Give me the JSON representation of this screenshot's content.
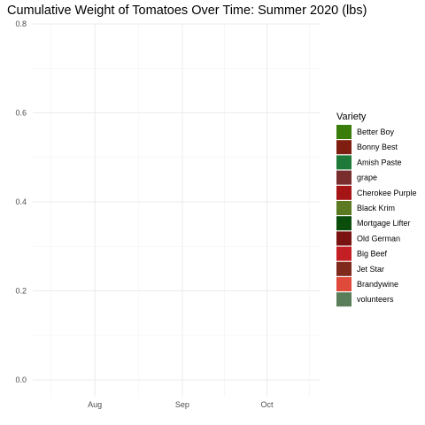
{
  "chart_data": {
    "type": "area",
    "title": "Cumulative Weight of Tomatoes Over Time: Summer 2020 (lbs)",
    "xlabel": "",
    "ylabel": "",
    "x_ticks": [
      "Aug",
      "Sep",
      "Oct"
    ],
    "x_range": [
      "2020-07-10",
      "2020-10-20"
    ],
    "x_tick_dates": [
      "2020-08-01",
      "2020-09-01",
      "2020-10-01"
    ],
    "ylim": [
      0,
      0.8
    ],
    "y_ticks": [
      "0.0",
      "0.2",
      "0.4",
      "0.6",
      "0.8"
    ],
    "grid": true,
    "legend": {
      "title": "Variety",
      "placement": "right",
      "entries": [
        {
          "name": "Better Boy",
          "color": "#3a7d0a"
        },
        {
          "name": "Bonny Best",
          "color": "#7f1d10"
        },
        {
          "name": "Amish Paste",
          "color": "#1f7a3a"
        },
        {
          "name": "grape",
          "color": "#7a2d2d"
        },
        {
          "name": "Cherokee Purple",
          "color": "#a51515"
        },
        {
          "name": "Black Krim",
          "color": "#5b7a22"
        },
        {
          "name": "Mortgage Lifter",
          "color": "#0b4d0b"
        },
        {
          "name": "Old German",
          "color": "#7a1212"
        },
        {
          "name": "Big Beef",
          "color": "#c41f25"
        },
        {
          "name": "Jet Star",
          "color": "#7f2a1c"
        },
        {
          "name": "Brandywine",
          "color": "#e04a3a"
        },
        {
          "name": "volunteers",
          "color": "#5a7d5a"
        }
      ]
    },
    "series": []
  }
}
